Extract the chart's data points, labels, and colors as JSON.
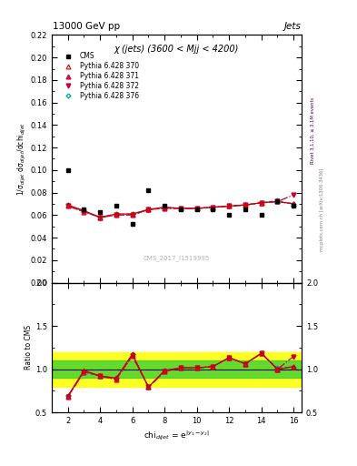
{
  "title_top": "13000 GeV pp",
  "title_right": "Jets",
  "panel_title": "χ (jets) (3600 < Mjj < 4200)",
  "ylabel_main": "1/σ$_{dijet}$ dσ$_{dijet}$/dchi$_{dijet}$",
  "ylabel_ratio": "Ratio to CMS",
  "xlabel": "chi$_{dijet}$ = e$^{|y_1 - y_2|}$",
  "watermark": "CMS_2017_I1519995",
  "right_label1": "Rivet 3.1.10, ≥ 3.1M events",
  "right_label2": "mcplots.cern.ch [arXiv:1306.3436]",
  "cms_x": [
    2,
    3,
    4,
    5,
    6,
    7,
    8,
    9,
    10,
    11,
    12,
    13,
    14,
    15,
    16
  ],
  "cms_y": [
    0.1,
    0.065,
    0.063,
    0.068,
    0.052,
    0.082,
    0.068,
    0.065,
    0.065,
    0.065,
    0.06,
    0.065,
    0.06,
    0.072,
    0.068
  ],
  "chi_x": [
    2,
    3,
    4,
    5,
    6,
    7,
    8,
    9,
    10,
    11,
    12,
    13,
    14,
    15,
    16
  ],
  "py370_y": [
    0.069,
    0.064,
    0.058,
    0.061,
    0.061,
    0.065,
    0.067,
    0.066,
    0.066,
    0.067,
    0.068,
    0.069,
    0.071,
    0.072,
    0.07
  ],
  "py371_y": [
    0.068,
    0.063,
    0.058,
    0.06,
    0.06,
    0.065,
    0.066,
    0.066,
    0.066,
    0.067,
    0.068,
    0.069,
    0.071,
    0.072,
    0.07
  ],
  "py372_y": [
    0.068,
    0.063,
    0.058,
    0.06,
    0.06,
    0.065,
    0.066,
    0.066,
    0.066,
    0.067,
    0.068,
    0.069,
    0.071,
    0.072,
    0.078
  ],
  "py376_y": [
    0.069,
    0.063,
    0.058,
    0.061,
    0.061,
    0.065,
    0.067,
    0.066,
    0.066,
    0.067,
    0.068,
    0.069,
    0.071,
    0.073,
    0.07
  ],
  "ratio370": [
    0.69,
    0.985,
    0.921,
    0.897,
    1.173,
    0.793,
    0.985,
    1.015,
    1.015,
    1.031,
    1.133,
    1.062,
    1.183,
    1.0,
    1.029
  ],
  "ratio371": [
    0.68,
    0.969,
    0.921,
    0.882,
    1.154,
    0.793,
    0.971,
    1.015,
    1.015,
    1.031,
    1.133,
    1.062,
    1.183,
    1.0,
    1.029
  ],
  "ratio372": [
    0.68,
    0.969,
    0.921,
    0.882,
    1.154,
    0.793,
    0.971,
    1.015,
    1.015,
    1.031,
    1.133,
    1.062,
    1.183,
    1.0,
    1.147
  ],
  "ratio376": [
    0.69,
    0.969,
    0.921,
    0.897,
    1.173,
    0.793,
    0.985,
    1.015,
    1.015,
    1.031,
    1.133,
    1.062,
    1.183,
    1.014,
    1.029
  ],
  "green_band_lo": 0.9,
  "green_band_hi": 1.1,
  "yellow_band_lo": 0.8,
  "yellow_band_hi": 1.2,
  "color_370": "#cc0000",
  "color_371": "#cc1155",
  "color_372": "#cc0033",
  "color_376": "#00aaaa",
  "ylim_main": [
    0.0,
    0.22
  ],
  "ylim_ratio": [
    0.5,
    2.0
  ],
  "xlim": [
    1,
    16.5
  ],
  "yticks_main": [
    0.0,
    0.02,
    0.04,
    0.06,
    0.08,
    0.1,
    0.12,
    0.14,
    0.16,
    0.18,
    0.2,
    0.22
  ],
  "xticks": [
    2,
    4,
    6,
    8,
    10,
    12,
    14,
    16
  ],
  "yticks_ratio": [
    0.5,
    1.0,
    1.5,
    2.0
  ]
}
